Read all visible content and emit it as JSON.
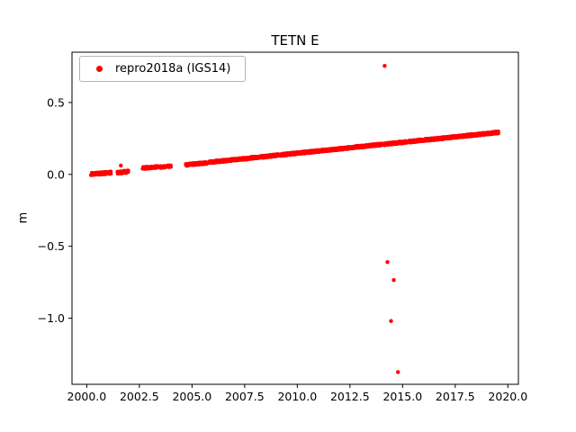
{
  "chart_data": {
    "type": "scatter",
    "title": "TETN E",
    "xlabel": "",
    "ylabel": "m",
    "xlim": [
      1999.3,
      2020.5
    ],
    "ylim": [
      -1.46,
      0.85
    ],
    "grid": false,
    "xticks": [
      2000.0,
      2002.5,
      2005.0,
      2007.5,
      2010.0,
      2012.5,
      2015.0,
      2017.5,
      2020.0
    ],
    "xtick_labels": [
      "2000.0",
      "2002.5",
      "2005.0",
      "2007.5",
      "2010.0",
      "2012.5",
      "2015.0",
      "2017.5",
      "2020.0"
    ],
    "yticks": [
      -1.0,
      -0.5,
      0.0,
      0.5
    ],
    "ytick_labels": [
      "−1.0",
      "−0.5",
      "0.0",
      "0.5"
    ],
    "legend_position": "upper left",
    "marker_color": "#ff0000",
    "series": [
      {
        "name": "repro2018a (IGS14)",
        "color": "#ff0000",
        "marker": "dot",
        "trend_segments": [
          {
            "x0": 2000.2,
            "x1": 2001.15,
            "y0": 0.002,
            "y1": 0.012,
            "jitter": 0.009,
            "step": 0.008
          },
          {
            "x0": 2001.45,
            "x1": 2001.98,
            "y0": 0.012,
            "y1": 0.02,
            "jitter": 0.009,
            "step": 0.008
          },
          {
            "x0": 2002.65,
            "x1": 2003.35,
            "y0": 0.044,
            "y1": 0.052,
            "jitter": 0.008,
            "step": 0.008
          },
          {
            "x0": 2003.45,
            "x1": 2004.0,
            "y0": 0.05,
            "y1": 0.058,
            "jitter": 0.008,
            "step": 0.008
          },
          {
            "x0": 2004.7,
            "x1": 2005.7,
            "y0": 0.066,
            "y1": 0.08,
            "jitter": 0.008,
            "step": 0.008
          },
          {
            "x0": 2005.8,
            "x1": 2019.55,
            "y0": 0.084,
            "y1": 0.292,
            "jitter": 0.008,
            "step": 0.006
          }
        ],
        "outliers": [
          {
            "x": 2001.62,
            "y": 0.062
          },
          {
            "x": 2014.15,
            "y": 0.755
          },
          {
            "x": 2014.28,
            "y": -0.61
          },
          {
            "x": 2014.45,
            "y": -1.02
          },
          {
            "x": 2014.58,
            "y": -0.735
          },
          {
            "x": 2014.78,
            "y": -1.375
          }
        ]
      }
    ]
  }
}
